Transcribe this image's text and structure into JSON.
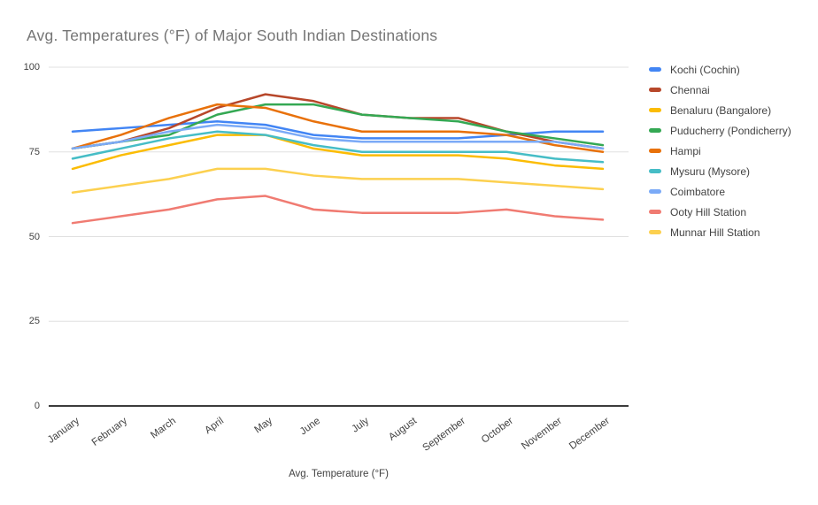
{
  "title": "Avg. Temperatures (°F) of Major South Indian Destinations",
  "axis_title_bottom": "Avg. Temperature (°F)",
  "colors": {
    "background": "#FFFFFF",
    "title_text": "#757575",
    "axis_text": "#424242",
    "gridline": "#E0E0E0",
    "axis_line": "#3C3C3C"
  },
  "chart_data": {
    "type": "line",
    "title": "Avg. Temperatures (°F) of Major South Indian Destinations",
    "xlabel": "Avg. Temperature (°F)",
    "ylabel": "",
    "ylim": [
      0,
      100
    ],
    "y_ticks": [
      0,
      25,
      50,
      75,
      100
    ],
    "grid": "horizontal",
    "legend_position": "right",
    "categories": [
      "January",
      "February",
      "March",
      "April",
      "May",
      "June",
      "July",
      "August",
      "September",
      "October",
      "November",
      "December"
    ],
    "series": [
      {
        "name": "Kochi (Cochin)",
        "color": "#4285F4",
        "values": [
          81,
          82,
          83,
          84,
          83,
          80,
          79,
          79,
          79,
          80,
          81,
          81
        ]
      },
      {
        "name": "Chennai",
        "color": "#B7472A",
        "values": [
          76,
          78,
          82,
          88,
          92,
          90,
          86,
          85,
          85,
          81,
          78,
          76
        ]
      },
      {
        "name": "Benaluru (Bangalore)",
        "color": "#FBBC04",
        "values": [
          70,
          74,
          77,
          80,
          80,
          76,
          74,
          74,
          74,
          73,
          71,
          70
        ]
      },
      {
        "name": "Puducherry (Pondicherry)",
        "color": "#34A853",
        "values": [
          76,
          78,
          80,
          86,
          89,
          89,
          86,
          85,
          84,
          81,
          79,
          77
        ]
      },
      {
        "name": "Hampi",
        "color": "#E8710A",
        "values": [
          76,
          80,
          85,
          89,
          88,
          84,
          81,
          81,
          81,
          80,
          77,
          75
        ]
      },
      {
        "name": "Mysuru (Mysore)",
        "color": "#46BDC6",
        "values": [
          73,
          76,
          79,
          81,
          80,
          77,
          75,
          75,
          75,
          75,
          73,
          72
        ]
      },
      {
        "name": "Coimbatore",
        "color": "#7BAAF7",
        "values": [
          76,
          78,
          81,
          83,
          82,
          79,
          78,
          78,
          78,
          78,
          78,
          76
        ]
      },
      {
        "name": "Ooty Hill Station",
        "color": "#F07B72",
        "values": [
          54,
          56,
          58,
          61,
          62,
          58,
          57,
          57,
          57,
          58,
          56,
          55
        ]
      },
      {
        "name": "Munnar Hill Station",
        "color": "#FCD04F",
        "values": [
          63,
          65,
          67,
          70,
          70,
          68,
          67,
          67,
          67,
          66,
          65,
          64
        ]
      }
    ]
  }
}
